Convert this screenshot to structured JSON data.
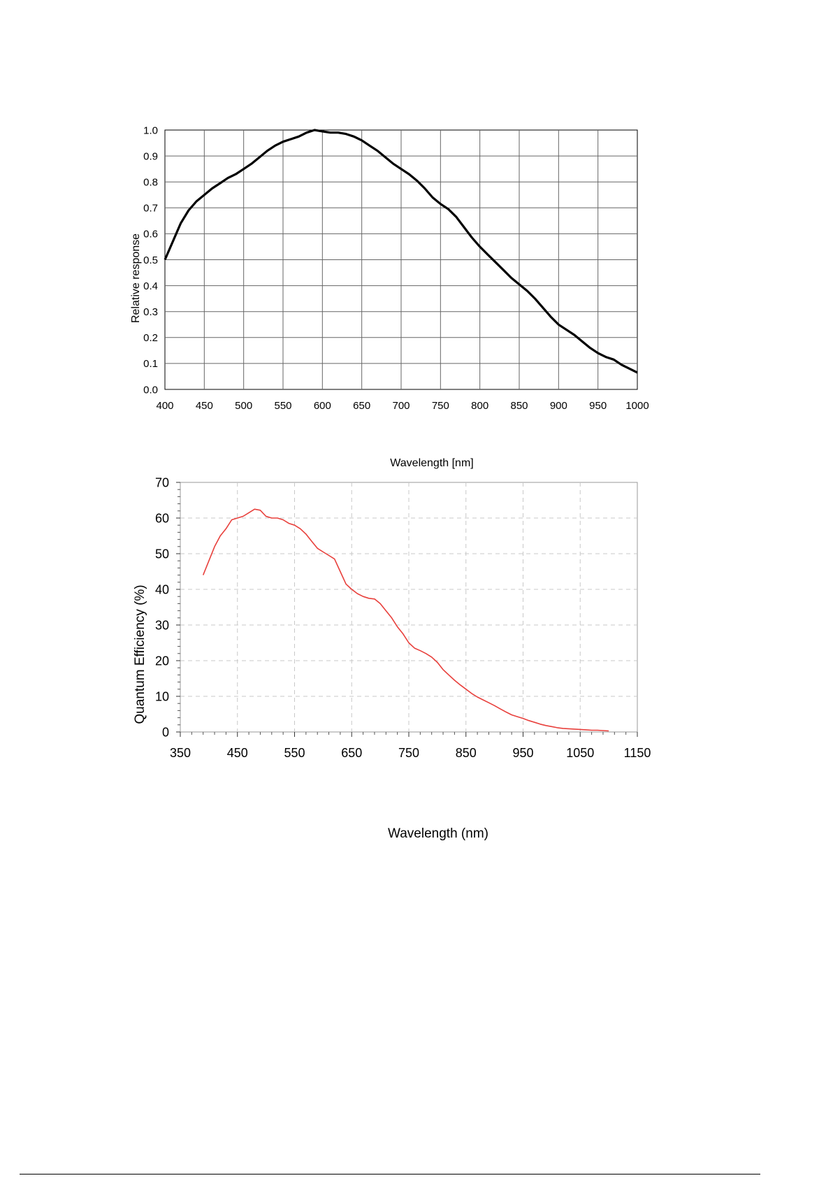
{
  "chart_data": [
    {
      "type": "line",
      "xlabel": "Wavelength  [nm]",
      "ylabel": "Relative  response",
      "xlim": [
        400,
        1000
      ],
      "ylim": [
        0.0,
        1.0
      ],
      "xticks": [
        "400",
        "450",
        "500",
        "550",
        "600",
        "650",
        "700",
        "750",
        "800",
        "850",
        "900",
        "950",
        "1000"
      ],
      "yticks": [
        "0.0",
        "0.1",
        "0.2",
        "0.3",
        "0.4",
        "0.5",
        "0.6",
        "0.7",
        "0.8",
        "0.9",
        "1.0"
      ],
      "grid": true,
      "line_color": "#000000",
      "series": [
        {
          "x": [
            400,
            410,
            420,
            430,
            440,
            450,
            460,
            470,
            480,
            490,
            500,
            510,
            520,
            530,
            540,
            550,
            560,
            570,
            580,
            590,
            600,
            610,
            620,
            630,
            640,
            650,
            660,
            670,
            680,
            690,
            700,
            710,
            720,
            730,
            740,
            750,
            760,
            770,
            780,
            790,
            800,
            810,
            820,
            830,
            840,
            850,
            860,
            870,
            880,
            890,
            900,
            910,
            920,
            930,
            940,
            950,
            960,
            970,
            980,
            990,
            1000
          ],
          "y": [
            0.5,
            0.57,
            0.64,
            0.69,
            0.725,
            0.75,
            0.775,
            0.795,
            0.815,
            0.83,
            0.85,
            0.87,
            0.895,
            0.92,
            0.94,
            0.955,
            0.965,
            0.975,
            0.99,
            1.0,
            0.995,
            0.99,
            0.99,
            0.985,
            0.975,
            0.96,
            0.94,
            0.92,
            0.895,
            0.87,
            0.85,
            0.83,
            0.805,
            0.775,
            0.74,
            0.715,
            0.695,
            0.665,
            0.625,
            0.585,
            0.55,
            0.52,
            0.49,
            0.46,
            0.43,
            0.405,
            0.38,
            0.35,
            0.315,
            0.28,
            0.25,
            0.23,
            0.21,
            0.185,
            0.16,
            0.14,
            0.125,
            0.115,
            0.095,
            0.08,
            0.065
          ]
        }
      ]
    },
    {
      "type": "line",
      "xlabel": "Wavelength (nm)",
      "ylabel": "Quantum Efficiency (%)",
      "xlim": [
        350,
        1150
      ],
      "ylim": [
        0,
        70
      ],
      "xticks": [
        "350",
        "450",
        "550",
        "650",
        "750",
        "850",
        "950",
        "1050",
        "1150"
      ],
      "yticks": [
        "0",
        "10",
        "20",
        "30",
        "40",
        "50",
        "60",
        "70"
      ],
      "grid": true,
      "grid_style": "dashed",
      "line_color": "#e8403c",
      "series": [
        {
          "x": [
            390,
            400,
            410,
            420,
            430,
            440,
            450,
            460,
            470,
            480,
            490,
            500,
            510,
            520,
            530,
            540,
            550,
            560,
            570,
            580,
            590,
            600,
            610,
            620,
            630,
            640,
            650,
            660,
            670,
            680,
            690,
            700,
            710,
            720,
            730,
            740,
            750,
            760,
            770,
            780,
            790,
            800,
            810,
            820,
            830,
            840,
            850,
            860,
            870,
            880,
            890,
            900,
            910,
            920,
            930,
            940,
            950,
            960,
            970,
            980,
            990,
            1000,
            1010,
            1020,
            1030,
            1040,
            1050,
            1060,
            1070,
            1080,
            1090,
            1100
          ],
          "y": [
            44,
            48,
            52,
            55,
            57,
            59.5,
            60,
            60.5,
            61.5,
            62.5,
            62.2,
            60.5,
            60,
            60,
            59.5,
            58.5,
            58,
            57,
            55.5,
            53.5,
            51.5,
            50.5,
            49.5,
            48.5,
            45,
            41.5,
            40,
            38.8,
            38,
            37.5,
            37.3,
            36,
            34,
            32,
            29.5,
            27.5,
            25,
            23.5,
            22.8,
            22,
            21,
            19.5,
            17.5,
            16,
            14.5,
            13.2,
            12,
            10.8,
            9.8,
            9,
            8.2,
            7.4,
            6.5,
            5.6,
            4.8,
            4.3,
            3.8,
            3.2,
            2.7,
            2.2,
            1.8,
            1.5,
            1.2,
            1,
            0.9,
            0.8,
            0.7,
            0.6,
            0.5,
            0.5,
            0.4,
            0.3
          ]
        }
      ]
    }
  ]
}
